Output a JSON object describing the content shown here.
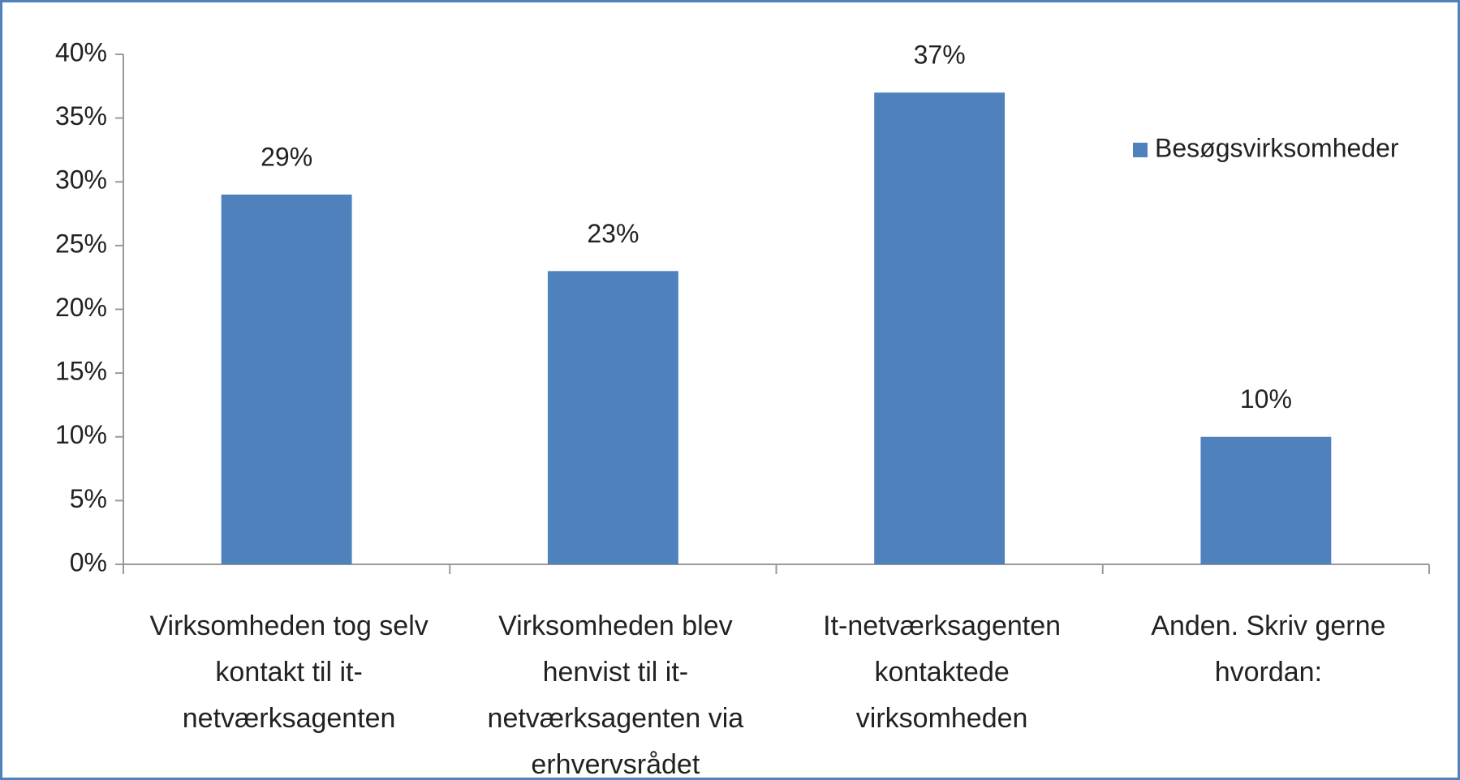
{
  "chart_data": {
    "type": "bar",
    "categories": [
      "Virksomheden tog selv kontakt til it-netværksagenten",
      "Virksomheden blev henvist til it-netværksagenten via erhvervsrådet",
      "It-netværksagenten kontaktede virksomheden",
      "Anden. Skriv gerne hvordan:"
    ],
    "series": [
      {
        "name": "Besøgsvirksomheder",
        "color": "#4f81bd",
        "values": [
          29,
          23,
          37,
          10
        ],
        "value_labels": [
          "29%",
          "23%",
          "37%",
          "10%"
        ]
      }
    ],
    "ylim": [
      0,
      40
    ],
    "yticks": [
      {
        "value": 0,
        "label": "0%"
      },
      {
        "value": 5,
        "label": "5%"
      },
      {
        "value": 10,
        "label": "10%"
      },
      {
        "value": 15,
        "label": "15%"
      },
      {
        "value": 20,
        "label": "20%"
      },
      {
        "value": 25,
        "label": "25%"
      },
      {
        "value": 30,
        "label": "30%"
      },
      {
        "value": 35,
        "label": "35%"
      },
      {
        "value": 40,
        "label": "40%"
      }
    ],
    "legend": "right",
    "grid": false
  }
}
